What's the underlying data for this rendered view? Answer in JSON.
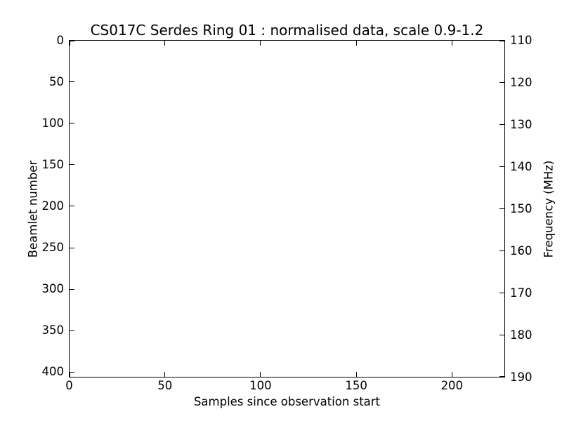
{
  "figure": {
    "background_color": "#ffffff",
    "axis_color": "#000000",
    "text_color": "#000000"
  },
  "chart_data": {
    "type": "heatmap",
    "title": "CS017C Serdes Ring 01 : normalised data, scale 0.9-1.2",
    "xlabel": "Samples since observation start",
    "ylabel_left": "Beamlet number",
    "ylabel_right": "Frequency (MHz)",
    "xlim": [
      0,
      227.6
    ],
    "ylim_left_top_to_bottom": [
      0,
      406
    ],
    "ylim_right_top_to_bottom": [
      110,
      190
    ],
    "x_ticks": [
      0,
      50,
      100,
      150,
      200
    ],
    "y_ticks_left": [
      0,
      50,
      100,
      150,
      200,
      250,
      300,
      350,
      400
    ],
    "y_ticks_right": [
      110,
      120,
      130,
      140,
      150,
      160,
      170,
      180,
      190
    ],
    "grid": false,
    "legend": false,
    "values": []
  }
}
